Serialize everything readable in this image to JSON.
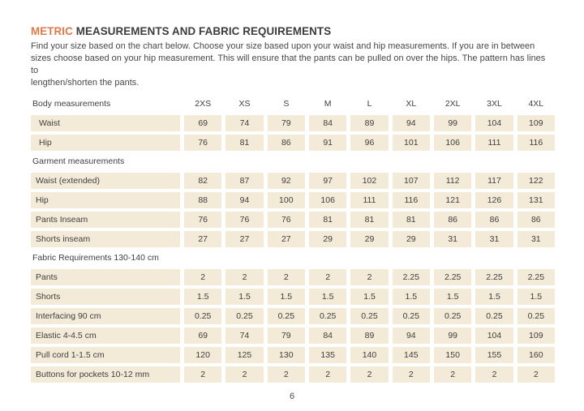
{
  "page": {
    "title_accent": "METRIC",
    "title_rest": " MEASUREMENTS AND FABRIC REQUIREMENTS",
    "intro": "Find your size based on the chart below. Choose your size based upon your waist and hip measurements. If you are in between\nsizes choose based on your hip measurement. This will ensure that the pants can be pulled on over the hips. The pattern has lines to\nlengthen/shorten the pants.",
    "page_number": "6"
  },
  "colors": {
    "accent": "#e0794a",
    "row_bg": "#f3ead8"
  },
  "table": {
    "sizes": [
      "2XS",
      "XS",
      "S",
      "M",
      "L",
      "XL",
      "2XL",
      "3XL",
      "4XL"
    ],
    "sections": [
      {
        "header": "Body measurements",
        "rows": [
          {
            "label": "Waist",
            "values": [
              "69",
              "74",
              "79",
              "84",
              "89",
              "94",
              "99",
              "104",
              "109"
            ]
          },
          {
            "label": "Hip",
            "values": [
              "76",
              "81",
              "86",
              "91",
              "96",
              "101",
              "106",
              "111",
              "116"
            ]
          }
        ]
      },
      {
        "header": "Garment measurements",
        "rows": [
          {
            "label": "Waist (extended)",
            "values": [
              "82",
              "87",
              "92",
              "97",
              "102",
              "107",
              "112",
              "117",
              "122"
            ]
          },
          {
            "label": "Hip",
            "values": [
              "88",
              "94",
              "100",
              "106",
              "111",
              "116",
              "121",
              "126",
              "131"
            ]
          },
          {
            "label": "Pants Inseam",
            "values": [
              "76",
              "76",
              "76",
              "81",
              "81",
              "81",
              "86",
              "86",
              "86"
            ]
          },
          {
            "label": "Shorts inseam",
            "values": [
              "27",
              "27",
              "27",
              "29",
              "29",
              "29",
              "31",
              "31",
              "31"
            ]
          }
        ]
      },
      {
        "header": "Fabric Requirements 130-140 cm",
        "rows": [
          {
            "label": "Pants",
            "values": [
              "2",
              "2",
              "2",
              "2",
              "2",
              "2.25",
              "2.25",
              "2.25",
              "2.25"
            ]
          },
          {
            "label": "Shorts",
            "values": [
              "1.5",
              "1.5",
              "1.5",
              "1.5",
              "1.5",
              "1.5",
              "1.5",
              "1.5",
              "1.5"
            ]
          },
          {
            "label": "Interfacing 90 cm",
            "values": [
              "0.25",
              "0.25",
              "0.25",
              "0.25",
              "0.25",
              "0.25",
              "0.25",
              "0.25",
              "0.25"
            ]
          },
          {
            "label": "Elastic 4-4.5 cm",
            "values": [
              "69",
              "74",
              "79",
              "84",
              "89",
              "94",
              "99",
              "104",
              "109"
            ]
          },
          {
            "label": "Pull cord 1-1.5 cm",
            "values": [
              "120",
              "125",
              "130",
              "135",
              "140",
              "145",
              "150",
              "155",
              "160"
            ]
          },
          {
            "label": "Buttons for pockets 10-12 mm",
            "values": [
              "2",
              "2",
              "2",
              "2",
              "2",
              "2",
              "2",
              "2",
              "2"
            ]
          }
        ]
      }
    ]
  }
}
